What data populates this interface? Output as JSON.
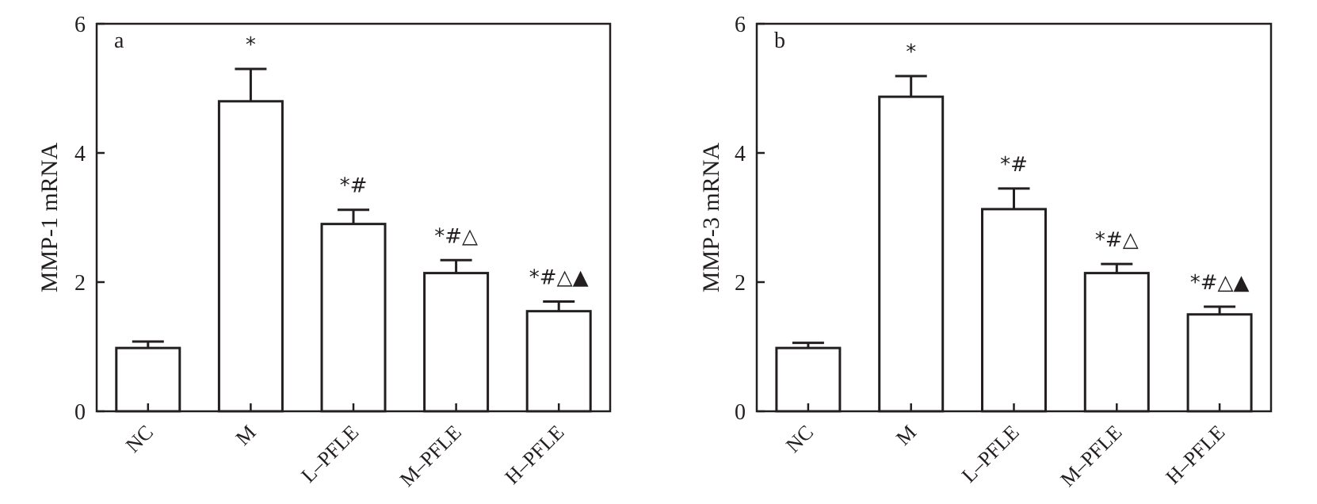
{
  "chart_data": [
    {
      "type": "bar",
      "panel_label": "a",
      "categories": [
        "NC",
        "M",
        "L–PFLE",
        "M–PFLE",
        "H–PFLE"
      ],
      "values": [
        0.98,
        4.8,
        2.9,
        2.14,
        1.55
      ],
      "errors": [
        0.1,
        0.5,
        0.22,
        0.2,
        0.15
      ],
      "annotations": [
        "",
        "*",
        "*#",
        "*#△",
        "*#△▲"
      ],
      "xlabel": "",
      "ylabel": "MMP-1 mRNA",
      "ylim": [
        0,
        6
      ],
      "yticks": [
        0,
        2,
        4,
        6
      ],
      "grid": false
    },
    {
      "type": "bar",
      "panel_label": "b",
      "categories": [
        "NC",
        "M",
        "L–PFLE",
        "M–PFLE",
        "H–PFLE"
      ],
      "values": [
        0.98,
        4.87,
        3.13,
        2.14,
        1.5
      ],
      "errors": [
        0.08,
        0.32,
        0.32,
        0.14,
        0.12
      ],
      "annotations": [
        "",
        "*",
        "*#",
        "*#△",
        "*#△▲"
      ],
      "xlabel": "",
      "ylabel": "MMP-3 mRNA",
      "ylim": [
        0,
        6
      ],
      "yticks": [
        0,
        2,
        4,
        6
      ],
      "grid": false
    }
  ]
}
